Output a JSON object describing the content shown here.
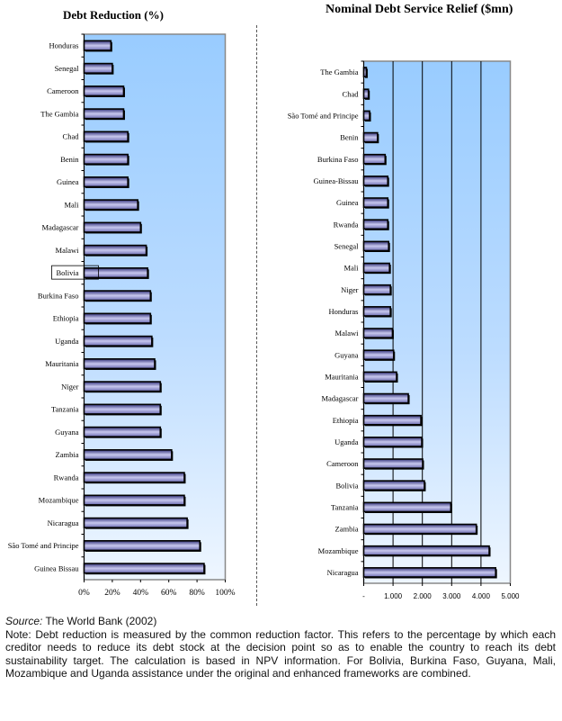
{
  "chart_data": [
    {
      "type": "bar",
      "orientation": "horizontal",
      "title": "Debt Reduction (%)",
      "categories": [
        "Honduras",
        "Senegal",
        "Cameroon",
        "The Gambia",
        "Chad",
        "Benin",
        "Guinea",
        "Mali",
        "Madagascar",
        "Malawi",
        "Bolivia",
        "Burkina Faso",
        "Ethiopia",
        "Uganda",
        "Mauritania",
        "Niger",
        "Tanzania",
        "Guyana",
        "Zambia",
        "Rwanda",
        "Mozambique",
        "Nicaragua",
        "São Tomé and Principe",
        "Guinea Bissau"
      ],
      "values": [
        19,
        20,
        28,
        28,
        31,
        31,
        31,
        38,
        40,
        44,
        45,
        47,
        47,
        48,
        50,
        54,
        54,
        54,
        62,
        71,
        71,
        73,
        82,
        85
      ],
      "xlim": [
        0,
        100
      ],
      "xticks": [
        "0%",
        "20%",
        "40%",
        "60%",
        "80%",
        "100%"
      ],
      "grid": false,
      "highlighted": "Bolivia"
    },
    {
      "type": "bar",
      "orientation": "horizontal",
      "title": "Nominal Debt Service Relief ($mn)",
      "categories": [
        "The Gambia",
        "Chad",
        "São Tomé and Principe",
        "Benin",
        "Burkina Faso",
        "Guinea-Bissau",
        "Guinea",
        "Rwanda",
        "Senegal",
        "Mali",
        "Niger",
        "Honduras",
        "Malawi",
        "Guyana",
        "Mauritania",
        "Madagascar",
        "Ethiopia",
        "Uganda",
        "Cameroon",
        "Bolivia",
        "Tanzania",
        "Zambia",
        "Mozambique",
        "Nicaragua"
      ],
      "values": [
        90,
        160,
        200,
        470,
        730,
        820,
        820,
        820,
        850,
        880,
        910,
        910,
        980,
        1020,
        1120,
        1520,
        1950,
        1980,
        2010,
        2070,
        2970,
        3840,
        4280,
        4500
      ],
      "xlim": [
        0,
        5000
      ],
      "xticks": [
        "-",
        "1.000",
        "2.000",
        "3.000",
        "4.000",
        "5.000"
      ],
      "grid": true
    }
  ],
  "footnote": {
    "source_label": "Source:",
    "source_text": " The World Bank (2002)",
    "note": "Note: Debt reduction is measured by the common reduction factor. This refers to the percentage by which each creditor needs to reduce its debt stock at the decision point so as to enable the country to reach its debt sustainability target. The calculation is based in NPV information. For Bolivia, Burkina Faso, Guyana, Mali, Mozambique and Uganda assistance under the original and enhanced frameworks are combined."
  }
}
